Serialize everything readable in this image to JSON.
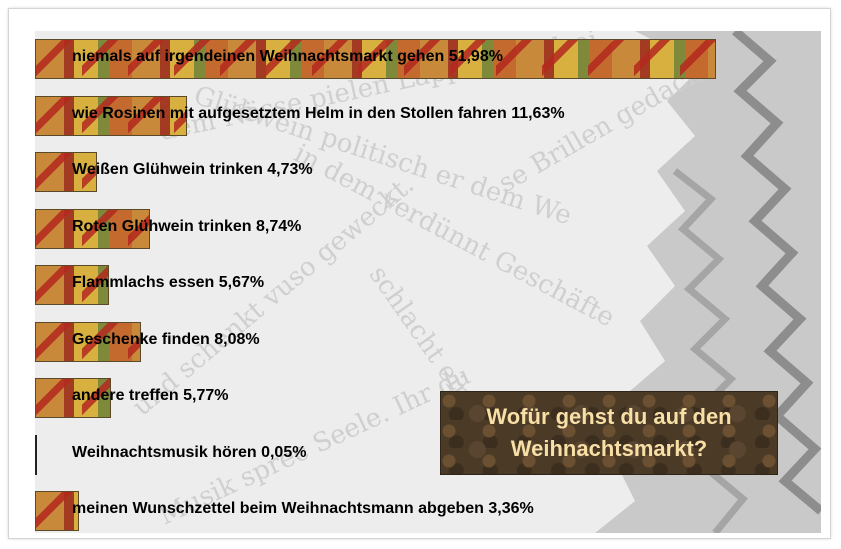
{
  "chart_data": {
    "type": "bar",
    "orientation": "horizontal",
    "title": "Wofür gehst du auf den Weihnachtsmarkt?",
    "title_lines": [
      "Wofür gehst du auf den",
      "Weihnachtsmarkt?"
    ],
    "unit": "%",
    "xlim": [
      0,
      51.98
    ],
    "grid": false,
    "legend": "none",
    "bars": [
      {
        "label": "niemals auf irgendeinen Weihnachtsmarkt gehen 51,98%",
        "value": 51.98
      },
      {
        "label": "wie Rosinen mit aufgesetztem Helm in den Stollen fahren 11,63%",
        "value": 11.63
      },
      {
        "label": "Weißen Glühwein trinken 4,73%",
        "value": 4.73
      },
      {
        "label": "Roten Glühwein trinken 8,74%",
        "value": 8.74
      },
      {
        "label": "Flammlachs essen 5,67%",
        "value": 5.67
      },
      {
        "label": "Geschenke finden 8,08%",
        "value": 8.08
      },
      {
        "label": "andere treffen 5,77%",
        "value": 5.77
      },
      {
        "label": "Weihnachtsmusik hören 0,05%",
        "value": 0.05
      },
      {
        "label": "meinen Wunschzettel beim Weihnachtsmann abgeben 3,36%",
        "value": 3.36
      }
    ]
  },
  "colors": {
    "bar_primary": "#c9893a",
    "bar_accent": "#a33a22",
    "title_box": "#4a3a26",
    "title_text": "#f7dfa6",
    "background": "#efefef"
  }
}
